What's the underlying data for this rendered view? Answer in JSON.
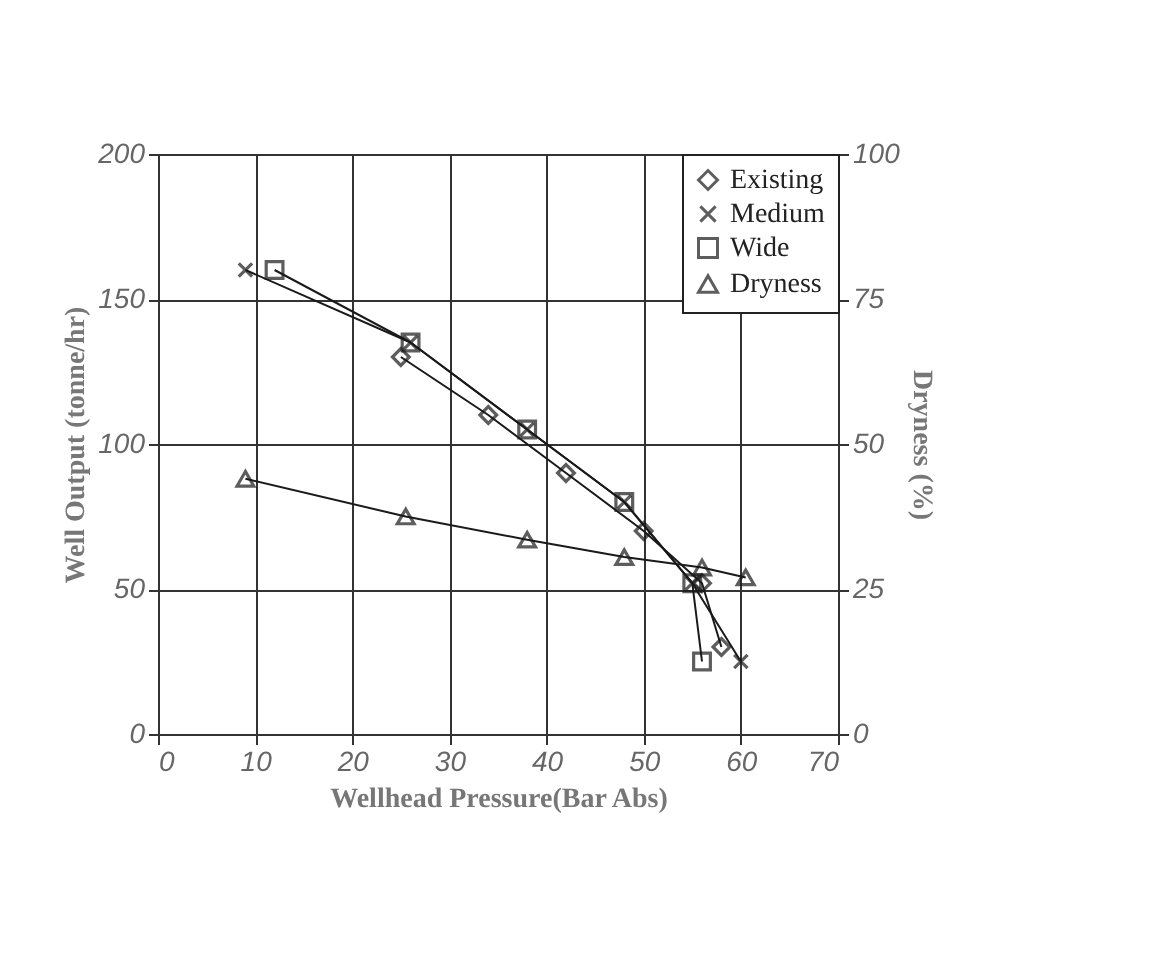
{
  "chart_data": {
    "type": "line",
    "xlabel": "Wellhead Pressure(Bar Abs)",
    "ylabel": "Well Output (tonne/hr)",
    "y2label": "Dryness (%)",
    "xlim": [
      0,
      70
    ],
    "xticks": [
      0,
      10,
      20,
      30,
      40,
      50,
      60,
      70
    ],
    "ylim": [
      0,
      200
    ],
    "yticks": [
      0,
      50,
      100,
      150,
      200
    ],
    "y2lim": [
      0,
      100
    ],
    "y2ticks": [
      0,
      25,
      50,
      75,
      100
    ],
    "grid": true,
    "legend": "top right",
    "line_style": "solid",
    "series": [
      {
        "name": "Existing",
        "color": "#1a1a1a",
        "marker": "diamond",
        "x": [
          25,
          34,
          42,
          50,
          56,
          58
        ],
        "values": [
          130,
          110,
          90,
          70,
          52,
          30
        ]
      },
      {
        "name": "Medium",
        "color": "#1a1a1a",
        "marker": "cross",
        "x": [
          9,
          26,
          38,
          48,
          55,
          60
        ],
        "values": [
          160,
          135,
          105,
          80,
          52,
          25
        ]
      },
      {
        "name": "Wide",
        "color": "#1a1a1a",
        "marker": "square",
        "x": [
          12,
          26,
          38,
          48,
          55,
          56
        ],
        "values": [
          160,
          135,
          105,
          80,
          52,
          25
        ]
      },
      {
        "name": "Dryness",
        "color": "#1a1a1a",
        "marker": "triangle",
        "axis": "y2",
        "x": [
          9,
          25.5,
          38,
          48,
          56,
          60.5
        ],
        "values": [
          44,
          37.5,
          33.5,
          30.5,
          28.7,
          27
        ]
      }
    ]
  }
}
